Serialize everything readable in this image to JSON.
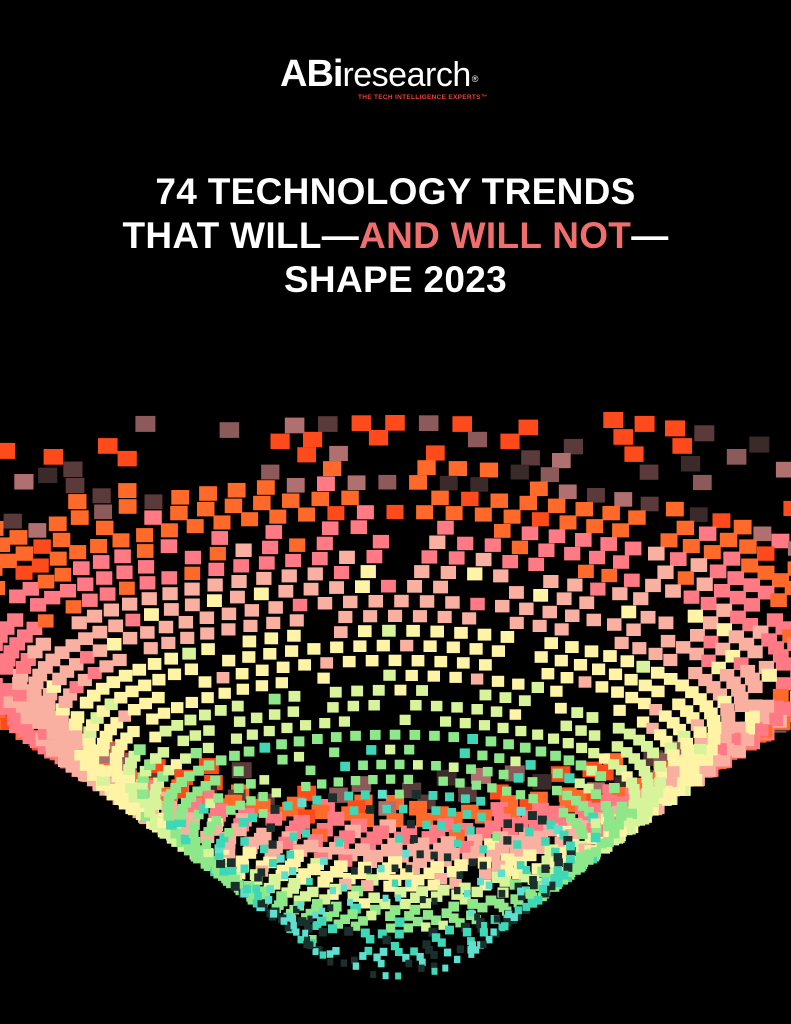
{
  "logo": {
    "brand_bold": "ABi",
    "brand_regular": "research",
    "registered_mark": "®",
    "tagline": "THE TECH INTELLIGENCE EXPERTS™"
  },
  "title": {
    "line1": "74 TECHNOLOGY TRENDS",
    "line2_start": "THAT WILL—",
    "line2_accent": "AND WILL NOT",
    "line2_end": "—",
    "line3": "SHAPE 2023"
  },
  "colors": {
    "background": "#000000",
    "title_text": "#ffffff",
    "title_accent": "#ef6f6c",
    "tagline": "#e8413a",
    "bands": [
      "#ff4a1c",
      "#ff6a2a",
      "#ff7a84",
      "#f9b0a0",
      "#fff3a6",
      "#d8f49a",
      "#8ee88a",
      "#3fd8b6",
      "#5fe0cf"
    ]
  }
}
